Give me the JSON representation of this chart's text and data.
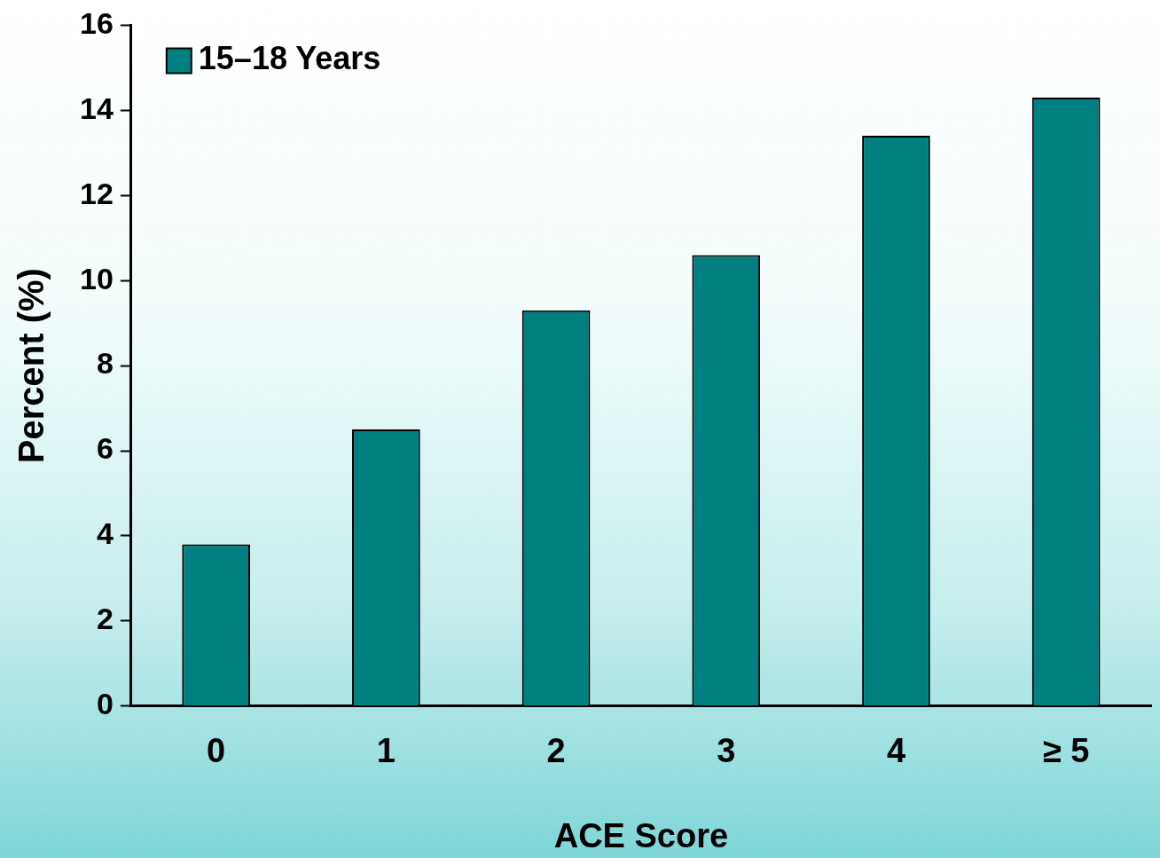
{
  "chart_data": {
    "type": "bar",
    "xlabel": "ACE Score",
    "ylabel": "Percent (%)",
    "categories": [
      "0",
      "1",
      "2",
      "3",
      "4",
      "≥ 5"
    ],
    "series": [
      {
        "name": "15–18 Years",
        "color": "#008080",
        "values": [
          3.8,
          6.5,
          9.3,
          10.6,
          13.4,
          14.3
        ]
      }
    ],
    "ylim": [
      0,
      16
    ],
    "yticks": [
      0,
      2,
      4,
      6,
      8,
      10,
      12,
      14,
      16
    ],
    "grid": false,
    "legend": "top left"
  }
}
